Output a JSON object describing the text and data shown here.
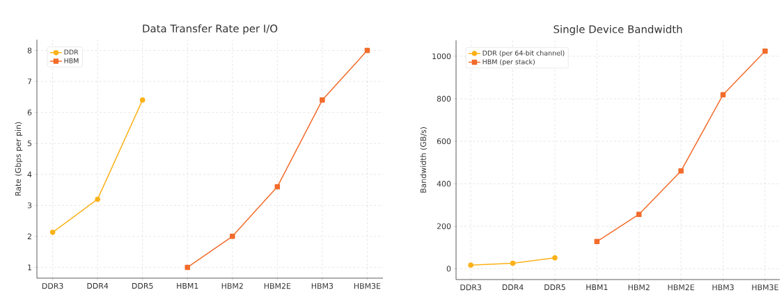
{
  "chart_data": [
    {
      "type": "line",
      "title": "Data Transfer Rate per I/O",
      "ylabel": "Rate (Gbps per pin)",
      "categories": [
        "DDR3",
        "DDR4",
        "DDR5",
        "HBM1",
        "HBM2",
        "HBM2E",
        "HBM3",
        "HBM3E"
      ],
      "series": [
        {
          "name": "DDR",
          "color": "#fbb117",
          "marker": "circle",
          "values": [
            2.13,
            3.2,
            6.4,
            null,
            null,
            null,
            null,
            null
          ]
        },
        {
          "name": "HBM",
          "color": "#f26b2a",
          "marker": "square",
          "values": [
            null,
            null,
            null,
            1,
            2,
            3.6,
            6.4,
            8
          ]
        }
      ],
      "ylim": [
        0.65,
        8.35
      ],
      "yticks": [
        1,
        2,
        3,
        4,
        5,
        6,
        7,
        8
      ],
      "grid": true,
      "legend": "top left",
      "line_style": "solid"
    },
    {
      "type": "line",
      "title": "Single Device Bandwidth",
      "ylabel": "Bandwidth (GB/s)",
      "categories": [
        "DDR3",
        "DDR4",
        "DDR5",
        "HBM1",
        "HBM2",
        "HBM2E",
        "HBM3",
        "HBM3E"
      ],
      "series": [
        {
          "name": "DDR (per 64-bit channel)",
          "color": "#fbb117",
          "marker": "circle",
          "values": [
            17,
            26,
            51,
            null,
            null,
            null,
            null,
            null
          ]
        },
        {
          "name": "HBM (per stack)",
          "color": "#f26b2a",
          "marker": "square",
          "values": [
            null,
            null,
            null,
            128,
            256,
            460,
            819,
            1024
          ]
        }
      ],
      "ylim": [
        -51,
        1075
      ],
      "yticks": [
        0,
        200,
        400,
        600,
        800,
        1000
      ],
      "grid": true,
      "legend": "top left",
      "line_style": "solid"
    }
  ]
}
